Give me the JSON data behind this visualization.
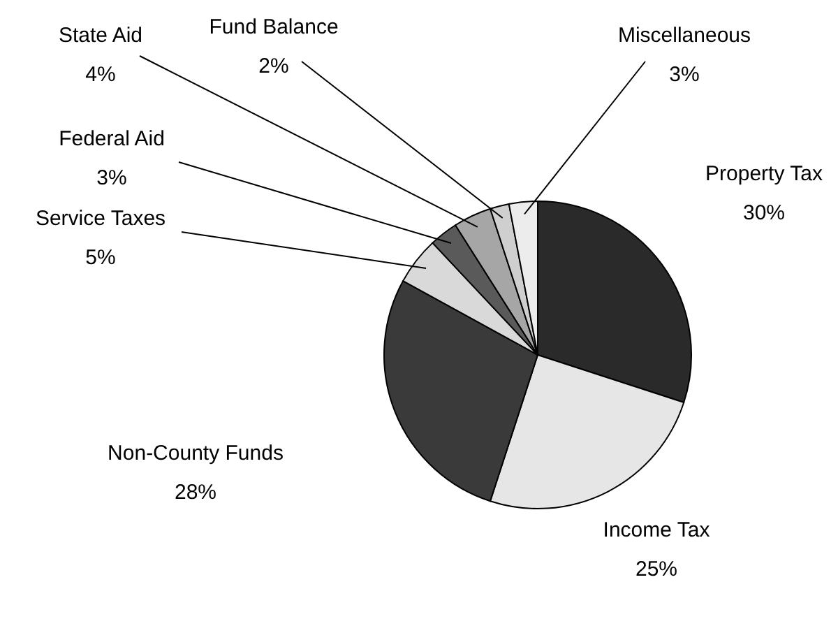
{
  "chart_data": {
    "type": "pie",
    "categories": [
      "Property Tax",
      "Income Tax",
      "Non-County Funds",
      "Service Taxes",
      "Federal Aid",
      "State Aid",
      "Fund Balance",
      "Miscellaneous"
    ],
    "values": [
      30,
      25,
      28,
      5,
      3,
      4,
      2,
      3
    ],
    "colors": [
      "#2a2a2a",
      "#e6e6e6",
      "#3a3a3a",
      "#d9d9d9",
      "#5a5a5a",
      "#a6a6a6",
      "#cfcfcf",
      "#ececec"
    ],
    "value_labels": [
      "30%",
      "25%",
      "28%",
      "5%",
      "3%",
      "4%",
      "2%",
      "3%"
    ]
  }
}
